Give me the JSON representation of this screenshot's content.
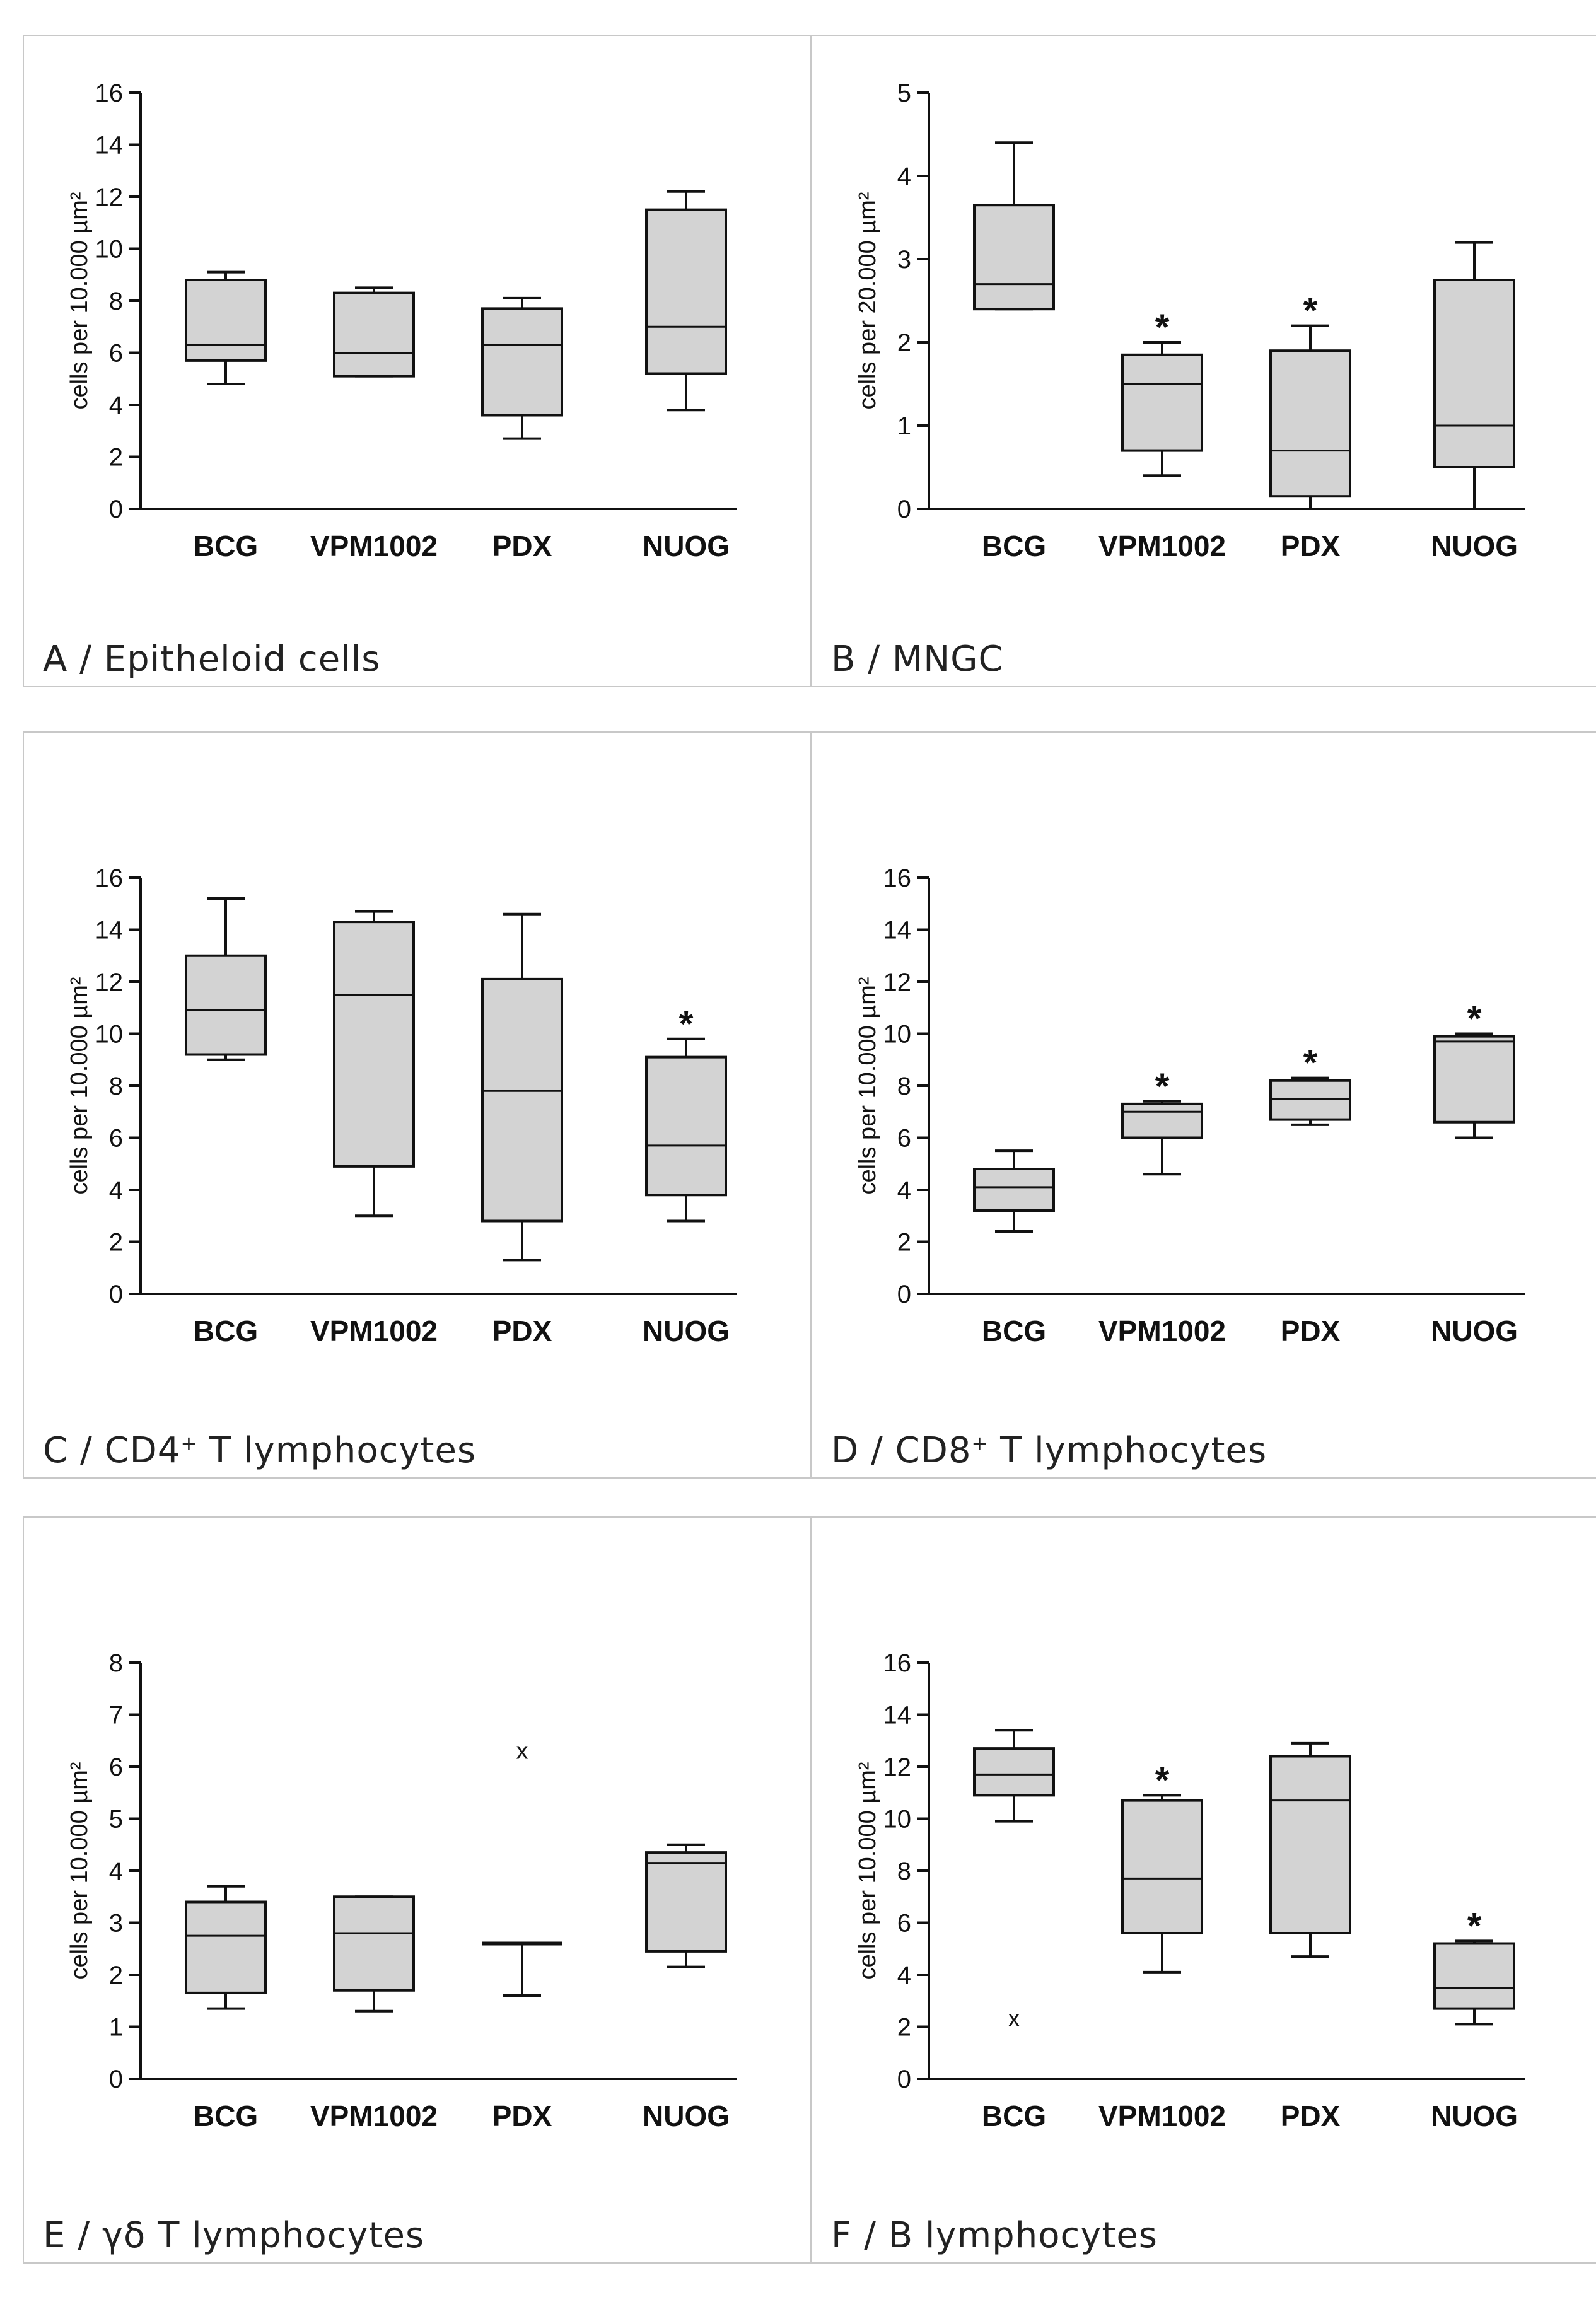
{
  "colors": {
    "box_fill": "#d3d3d3",
    "line": "#111111",
    "panel_border": "#c8c8c8"
  },
  "chart_data": [
    {
      "type": "box",
      "panel_label": "A",
      "title_main": "Epitheloid cells",
      "title_sup": "",
      "title_rest": "",
      "ylabel": "cells per 10.000 µm²",
      "ylim": [
        0,
        16
      ],
      "yticks": [
        0,
        2,
        4,
        6,
        8,
        10,
        12,
        14,
        16
      ],
      "categories": [
        "BCG",
        "VPM1002",
        "PDX",
        "NUOG"
      ],
      "boxes": [
        {
          "min": 4.8,
          "q1": 5.7,
          "median": 6.3,
          "q3": 8.8,
          "max": 9.1,
          "sig": ""
        },
        {
          "min": 5.1,
          "q1": 5.1,
          "median": 6.0,
          "q3": 8.3,
          "max": 8.5,
          "sig": ""
        },
        {
          "min": 2.7,
          "q1": 3.6,
          "median": 6.3,
          "q3": 7.7,
          "max": 8.1,
          "sig": ""
        },
        {
          "min": 3.8,
          "q1": 5.2,
          "median": 7.0,
          "q3": 11.5,
          "max": 12.2,
          "sig": ""
        }
      ],
      "outliers": []
    },
    {
      "type": "box",
      "panel_label": "B",
      "title_main": "MNGC",
      "title_sup": "",
      "title_rest": "",
      "ylabel": "cells per 20.000 µm²",
      "ylim": [
        0,
        5
      ],
      "yticks": [
        0,
        1,
        2,
        3,
        4,
        5
      ],
      "categories": [
        "BCG",
        "VPM1002",
        "PDX",
        "NUOG"
      ],
      "boxes": [
        {
          "min": 2.4,
          "q1": 2.4,
          "median": 2.7,
          "q3": 3.65,
          "max": 4.4,
          "sig": ""
        },
        {
          "min": 0.4,
          "q1": 0.7,
          "median": 1.5,
          "q3": 1.85,
          "max": 2.0,
          "sig": "*"
        },
        {
          "min": 0.0,
          "q1": 0.15,
          "median": 0.7,
          "q3": 1.9,
          "max": 2.2,
          "sig": "*"
        },
        {
          "min": 0.0,
          "q1": 0.5,
          "median": 1.0,
          "q3": 2.75,
          "max": 3.2,
          "sig": ""
        }
      ],
      "outliers": []
    },
    {
      "type": "box",
      "panel_label": "C",
      "title_main": "CD4",
      "title_sup": "+",
      "title_rest": " T lymphocytes",
      "ylabel": "cells per 10.000 µm²",
      "ylim": [
        0,
        16
      ],
      "yticks": [
        0,
        2,
        4,
        6,
        8,
        10,
        12,
        14,
        16
      ],
      "categories": [
        "BCG",
        "VPM1002",
        "PDX",
        "NUOG"
      ],
      "boxes": [
        {
          "min": 9.0,
          "q1": 9.2,
          "median": 10.9,
          "q3": 13.0,
          "max": 15.2,
          "sig": ""
        },
        {
          "min": 3.0,
          "q1": 4.9,
          "median": 11.5,
          "q3": 14.3,
          "max": 14.7,
          "sig": ""
        },
        {
          "min": 1.3,
          "q1": 2.8,
          "median": 7.8,
          "q3": 12.1,
          "max": 14.6,
          "sig": ""
        },
        {
          "min": 2.8,
          "q1": 3.8,
          "median": 5.7,
          "q3": 9.1,
          "max": 9.8,
          "sig": "*"
        }
      ],
      "outliers": []
    },
    {
      "type": "box",
      "panel_label": "D",
      "title_main": "CD8",
      "title_sup": "+",
      "title_rest": " T lymphocytes",
      "ylabel": "cells per 10.000 µm²",
      "ylim": [
        0,
        16
      ],
      "yticks": [
        0,
        2,
        4,
        6,
        8,
        10,
        12,
        14,
        16
      ],
      "categories": [
        "BCG",
        "VPM1002",
        "PDX",
        "NUOG"
      ],
      "boxes": [
        {
          "min": 2.4,
          "q1": 3.2,
          "median": 4.1,
          "q3": 4.8,
          "max": 5.5,
          "sig": ""
        },
        {
          "min": 4.6,
          "q1": 6.0,
          "median": 7.0,
          "q3": 7.3,
          "max": 7.4,
          "sig": "*"
        },
        {
          "min": 6.5,
          "q1": 6.7,
          "median": 7.5,
          "q3": 8.2,
          "max": 8.3,
          "sig": "*"
        },
        {
          "min": 6.0,
          "q1": 6.6,
          "median": 9.7,
          "q3": 9.9,
          "max": 10.0,
          "sig": "*"
        }
      ],
      "outliers": []
    },
    {
      "type": "box",
      "panel_label": "E",
      "title_main": "γδ T lymphocytes",
      "title_sup": "",
      "title_rest": "",
      "ylabel": "cells per 10.000 µm²",
      "ylim": [
        0,
        8
      ],
      "yticks": [
        0,
        1,
        2,
        3,
        4,
        5,
        6,
        7,
        8
      ],
      "categories": [
        "BCG",
        "VPM1002",
        "PDX",
        "NUOG"
      ],
      "boxes": [
        {
          "min": 1.35,
          "q1": 1.65,
          "median": 2.75,
          "q3": 3.4,
          "max": 3.7,
          "sig": ""
        },
        {
          "min": 1.3,
          "q1": 1.7,
          "median": 2.8,
          "q3": 3.5,
          "max": 3.5,
          "sig": ""
        },
        {
          "min": 1.6,
          "q1": 2.6,
          "median": 2.6,
          "q3": 2.6,
          "max": 2.6,
          "sig": ""
        },
        {
          "min": 2.15,
          "q1": 2.45,
          "median": 4.15,
          "q3": 4.35,
          "max": 4.5,
          "sig": ""
        }
      ],
      "outliers": [
        {
          "category": "PDX",
          "value": 6.3
        }
      ]
    },
    {
      "type": "box",
      "panel_label": "F",
      "title_main": "B lymphocytes",
      "title_sup": "",
      "title_rest": "",
      "ylabel": "cells per 10.000 µm²",
      "ylim": [
        0,
        16
      ],
      "yticks": [
        0,
        2,
        4,
        6,
        8,
        10,
        12,
        14,
        16
      ],
      "categories": [
        "BCG",
        "VPM1002",
        "PDX",
        "NUOG"
      ],
      "boxes": [
        {
          "min": 9.9,
          "q1": 10.9,
          "median": 11.7,
          "q3": 12.7,
          "max": 13.4,
          "sig": ""
        },
        {
          "min": 4.1,
          "q1": 5.6,
          "median": 7.7,
          "q3": 10.7,
          "max": 10.9,
          "sig": "*"
        },
        {
          "min": 4.7,
          "q1": 5.6,
          "median": 10.7,
          "q3": 12.4,
          "max": 12.9,
          "sig": ""
        },
        {
          "min": 2.1,
          "q1": 2.7,
          "median": 3.5,
          "q3": 5.2,
          "max": 5.3,
          "sig": "*"
        }
      ],
      "outliers": [
        {
          "category": "BCG",
          "value": 2.3
        }
      ]
    }
  ]
}
